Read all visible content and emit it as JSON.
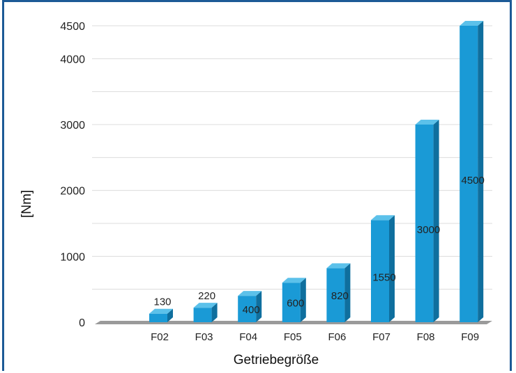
{
  "chart_data": {
    "type": "bar",
    "style": "3d-column",
    "categories": [
      "F02",
      "F03",
      "F04",
      "F05",
      "F06",
      "F07",
      "F08",
      "F09"
    ],
    "values": [
      130,
      220,
      400,
      600,
      820,
      1550,
      3000,
      4500
    ],
    "data_labels": [
      "130",
      "220",
      "400",
      "600",
      "820",
      "1550",
      "3000",
      "4500"
    ],
    "title": "",
    "xlabel": "Getriebegröße",
    "ylabel": "[Nm]",
    "ylim": [
      0,
      4500
    ],
    "yticks": [
      0,
      1000,
      2000,
      3000,
      4000,
      4500
    ],
    "grid": true,
    "legend": "none",
    "colors": {
      "bar_front": "#1a9ad6",
      "bar_side": "#0f6f9e",
      "bar_top": "#5cc1ea",
      "floor": "#9a9a9a",
      "grid": "#dcdcdc",
      "frame": "#1c5a96"
    }
  }
}
